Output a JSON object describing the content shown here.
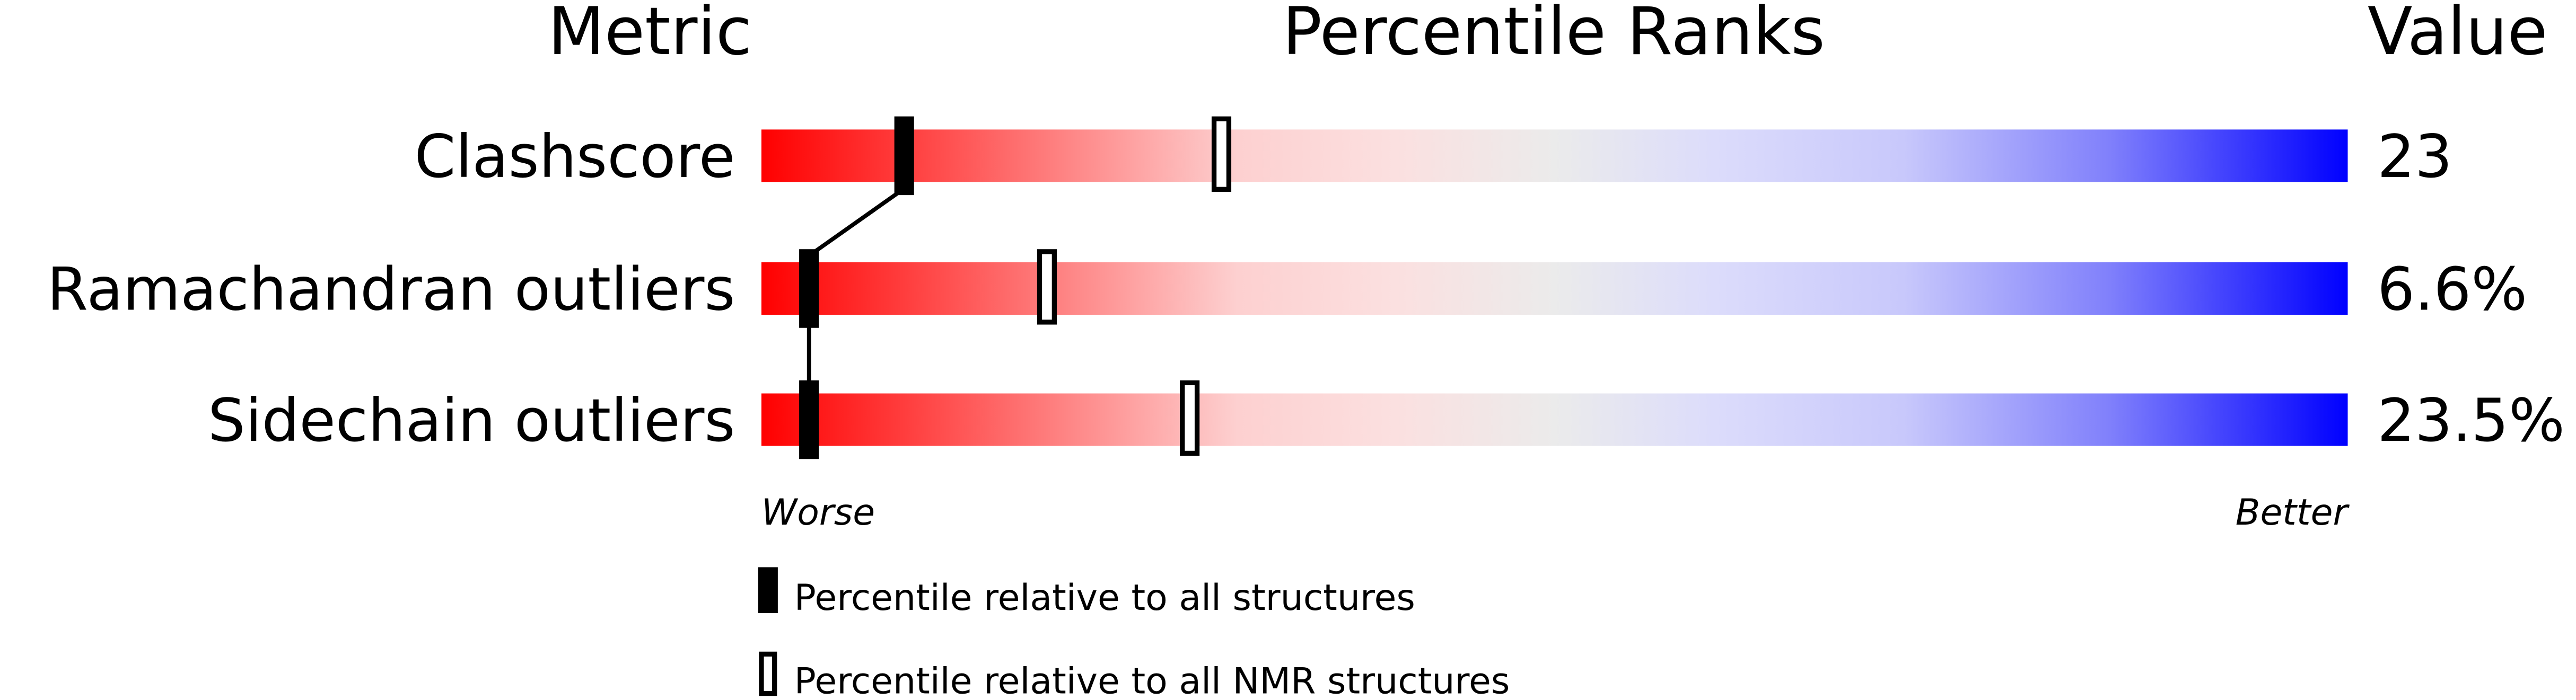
{
  "chart_data": {
    "type": "bar",
    "headers": {
      "metric": "Metric",
      "ranks": "Percentile Ranks",
      "value": "Value"
    },
    "xlim": [
      0,
      100
    ],
    "metrics": [
      {
        "name": "Clashscore",
        "value": "23",
        "percentile_all": 9,
        "percentile_nmr": 29
      },
      {
        "name": "Ramachandran outliers",
        "value": "6.6%",
        "percentile_all": 3,
        "percentile_nmr": 18
      },
      {
        "name": "Sidechain outliers",
        "value": "23.5%",
        "percentile_all": 3,
        "percentile_nmr": 27
      }
    ],
    "axis": {
      "worse": "Worse",
      "better": "Better"
    },
    "legend": {
      "all": "Percentile relative to all structures",
      "nmr": "Percentile relative to all NMR structures"
    },
    "colors": {
      "worst": "#ff0000",
      "middle": "#eeeeee",
      "best": "#0000ff",
      "marker": "#000000"
    }
  }
}
